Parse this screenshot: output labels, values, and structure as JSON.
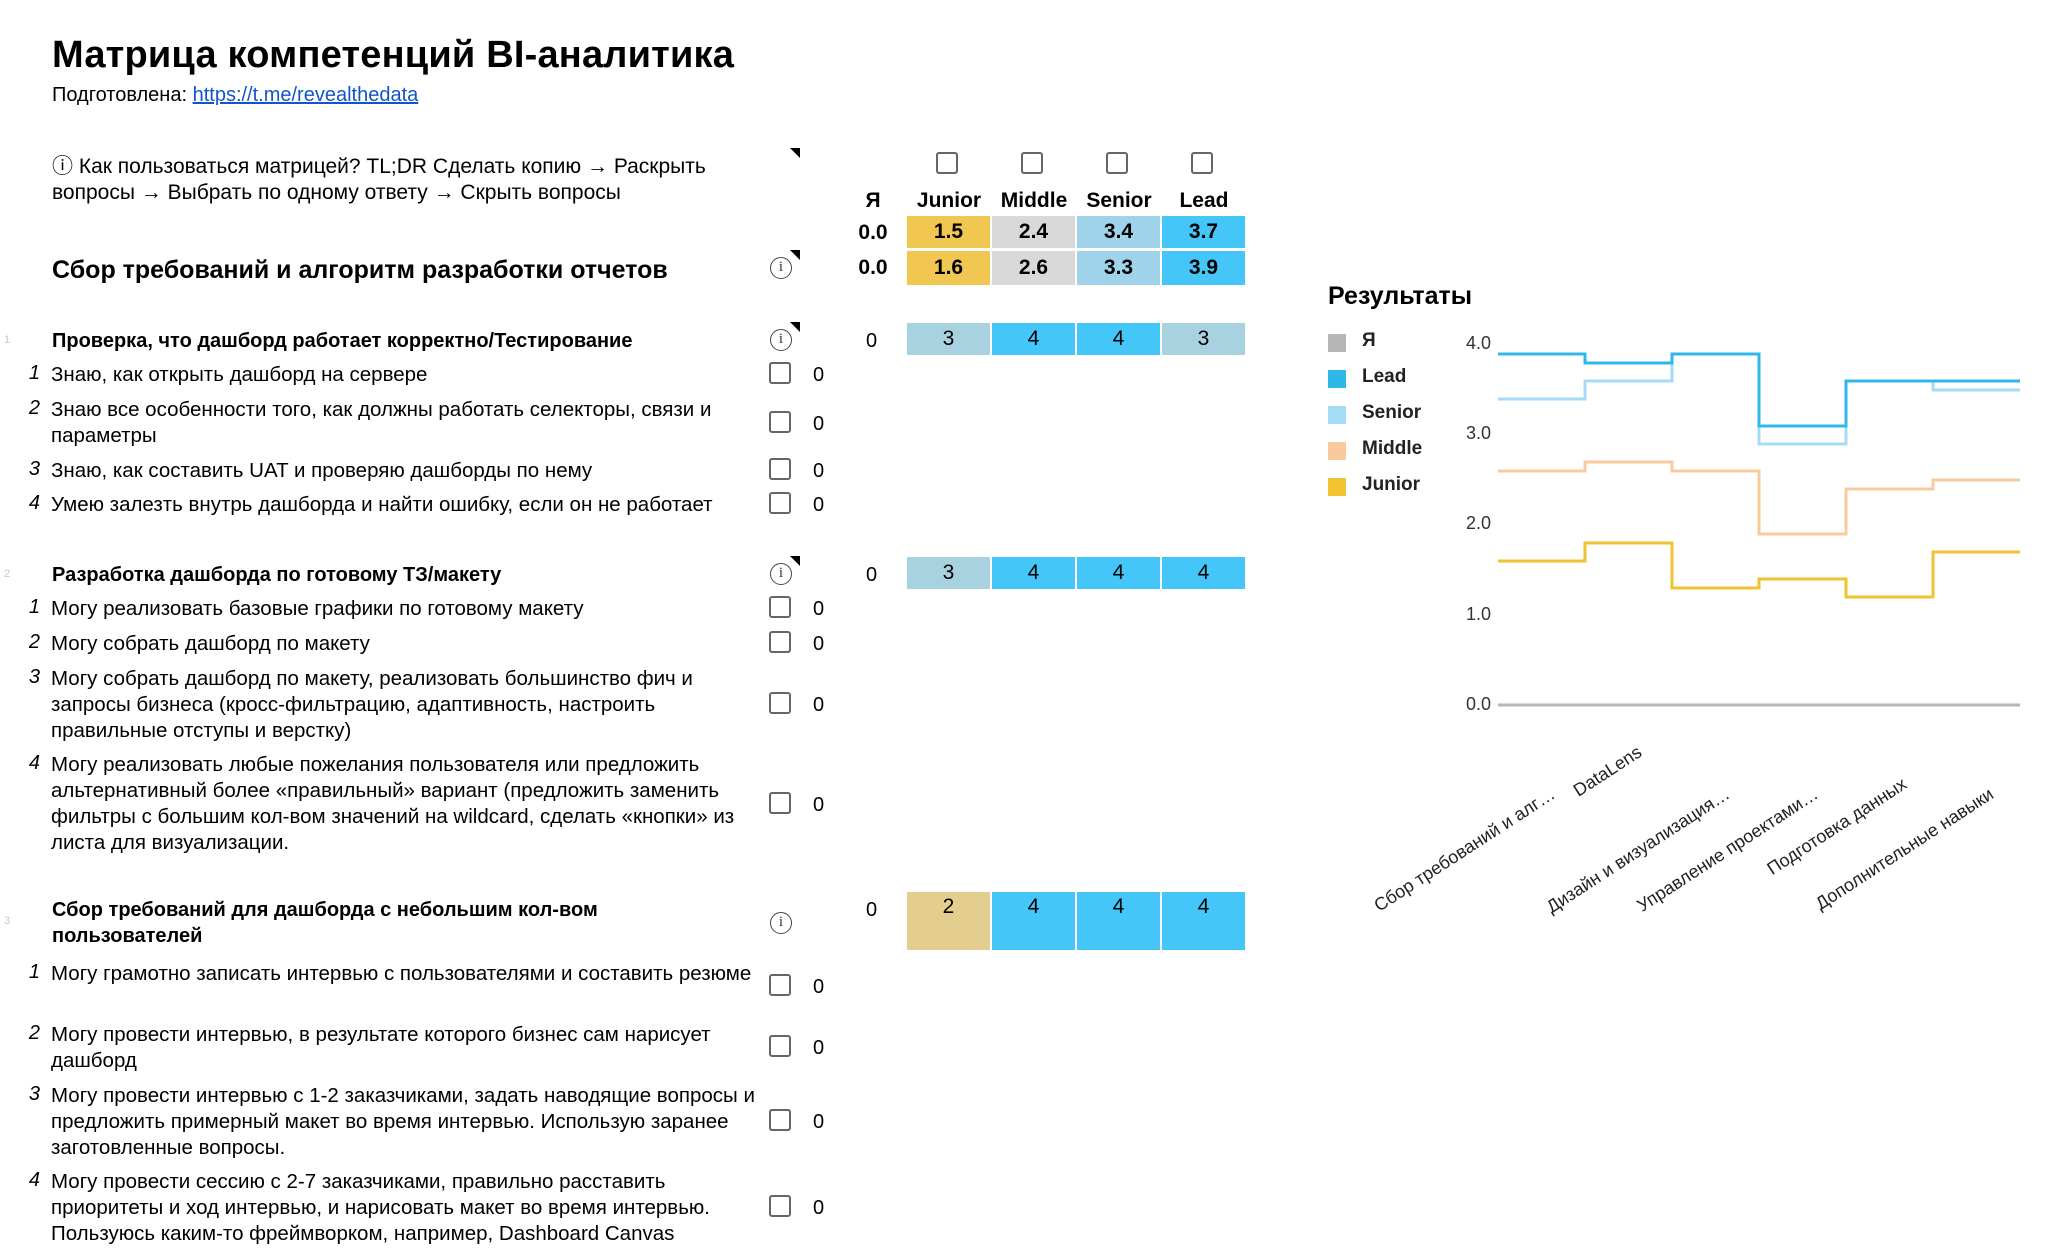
{
  "header": {
    "title": "Матрица компетенций BI-аналитика",
    "prepared_label": "Подготовлена: ",
    "prepared_link": "https://t.me/revealthedata"
  },
  "howto": "ⓘ Как пользоваться матрицей? TL;DR Сделать копию → Раскрыть вопросы → Выбрать по одному ответу → Скрыть вопросы",
  "columns": [
    "Я",
    "Junior",
    "Middle",
    "Senior",
    "Lead"
  ],
  "summary": {
    "row1": {
      "me": "0.0",
      "junior": "1.5",
      "middle": "2.4",
      "senior": "3.4",
      "lead": "3.7"
    },
    "row2": {
      "me": "0.0",
      "junior": "1.6",
      "middle": "2.6",
      "senior": "3.3",
      "lead": "3.9"
    }
  },
  "section": {
    "title": "Сбор требований и алгоритм разработки отчетов"
  },
  "groups": [
    {
      "index": "1",
      "title": "Проверка, что дашборд работает корректно/Тестирование",
      "me": "0",
      "levels": [
        "3",
        "4",
        "4",
        "3"
      ],
      "items": [
        {
          "num": "1",
          "text": "Знаю, как открыть дашборд на сервере",
          "value": "0"
        },
        {
          "num": "2",
          "text": "Знаю все особенности того, как должны работать селекторы, связи и параметры",
          "value": "0"
        },
        {
          "num": "3",
          "text": "Знаю, как составить UAT и проверяю дашборды по нему",
          "value": "0"
        },
        {
          "num": "4",
          "text": "Умею залезть внутрь дашборда и найти ошибку, если он не работает",
          "value": "0"
        }
      ]
    },
    {
      "index": "2",
      "title": "Разработка дашборда по готовому ТЗ/макету",
      "me": "0",
      "levels": [
        "3",
        "4",
        "4",
        "4"
      ],
      "items": [
        {
          "num": "1",
          "text": "Могу реализовать базовые графики по готовому макету",
          "value": "0"
        },
        {
          "num": "2",
          "text": "Могу собрать дашборд по макету",
          "value": "0"
        },
        {
          "num": "3",
          "text": "Могу собрать дашборд по макету, реализовать большинство фич и запросы бизнеса (кросс-фильтрацию, адаптивность, настроить правильные отступы и верстку)",
          "value": "0"
        },
        {
          "num": "4",
          "text": "Могу реализовать любые пожелания пользователя или предложить альтернативный более «правильный» вариант (предложить заменить фильтры с большим кол-вом значений на wildcard, сделать «кнопки» из листа для визуализации.",
          "value": "0"
        }
      ]
    },
    {
      "index": "3",
      "title": "Сбор требований для дашборда с небольшим кол-вом пользователей",
      "me": "0",
      "levels": [
        "2",
        "4",
        "4",
        "4"
      ],
      "items": [
        {
          "num": "1",
          "text": "Могу грамотно записать интервью с пользователями и составить резюме",
          "value": "0"
        },
        {
          "num": "2",
          "text": "Могу провести интервью, в результате которого бизнес сам нарисует дашборд",
          "value": "0"
        },
        {
          "num": "3",
          "text": "Могу провести интервью с 1-2 заказчиками, задать наводящие вопросы и предложить примерный макет во время интервью. Использую заранее заготовленные вопросы.",
          "value": "0"
        },
        {
          "num": "4",
          "text": "Могу провести сессию с 2-7 заказчиками, правильно расставить приоритеты и ход интервью, и нарисовать макет во время интервью. Пользуюсь каким-то фреймворком, например, Dashboard Canvas",
          "value": "0"
        }
      ]
    }
  ],
  "colors": {
    "junior": "#f1c232",
    "junior_cell": "#f1c752",
    "middle": "#f9cb9c",
    "middle_cell": "#d9d9d9",
    "senior": "#a4dcf5",
    "senior_cell": "#9fd3ea",
    "lead": "#2fb7ea",
    "lead_cell": "#45c6f8",
    "me": "#b7b7b7",
    "pale_blue_cell": "#a8d2e0",
    "tan_cell": "#e3cd8f"
  },
  "chart_data": {
    "type": "line",
    "title": "Результаты",
    "step": true,
    "categories": [
      "Сбор требований и алг…",
      "DataLens",
      "Дизайн и визуализация…",
      "Управление проектами…",
      "Подготовка данных",
      "Дополнительные навыки"
    ],
    "ylim": [
      0,
      4
    ],
    "yticks": [
      "0.0",
      "1.0",
      "2.0",
      "3.0",
      "4.0"
    ],
    "legend": "left",
    "series": [
      {
        "name": "Я",
        "color": "#b7b7b7",
        "values": [
          0,
          0,
          0,
          0,
          0,
          0
        ]
      },
      {
        "name": "Lead",
        "color": "#2fb7ea",
        "values": [
          3.9,
          3.8,
          3.9,
          3.1,
          3.6,
          3.6
        ]
      },
      {
        "name": "Senior",
        "color": "#a4dcf5",
        "values": [
          3.4,
          3.6,
          3.9,
          2.9,
          3.6,
          3.5
        ]
      },
      {
        "name": "Middle",
        "color": "#f9cb9c",
        "values": [
          2.6,
          2.7,
          2.6,
          1.9,
          2.4,
          2.5
        ]
      },
      {
        "name": "Junior",
        "color": "#f1c232",
        "values": [
          1.6,
          1.8,
          1.3,
          1.4,
          1.2,
          1.7
        ]
      }
    ]
  }
}
